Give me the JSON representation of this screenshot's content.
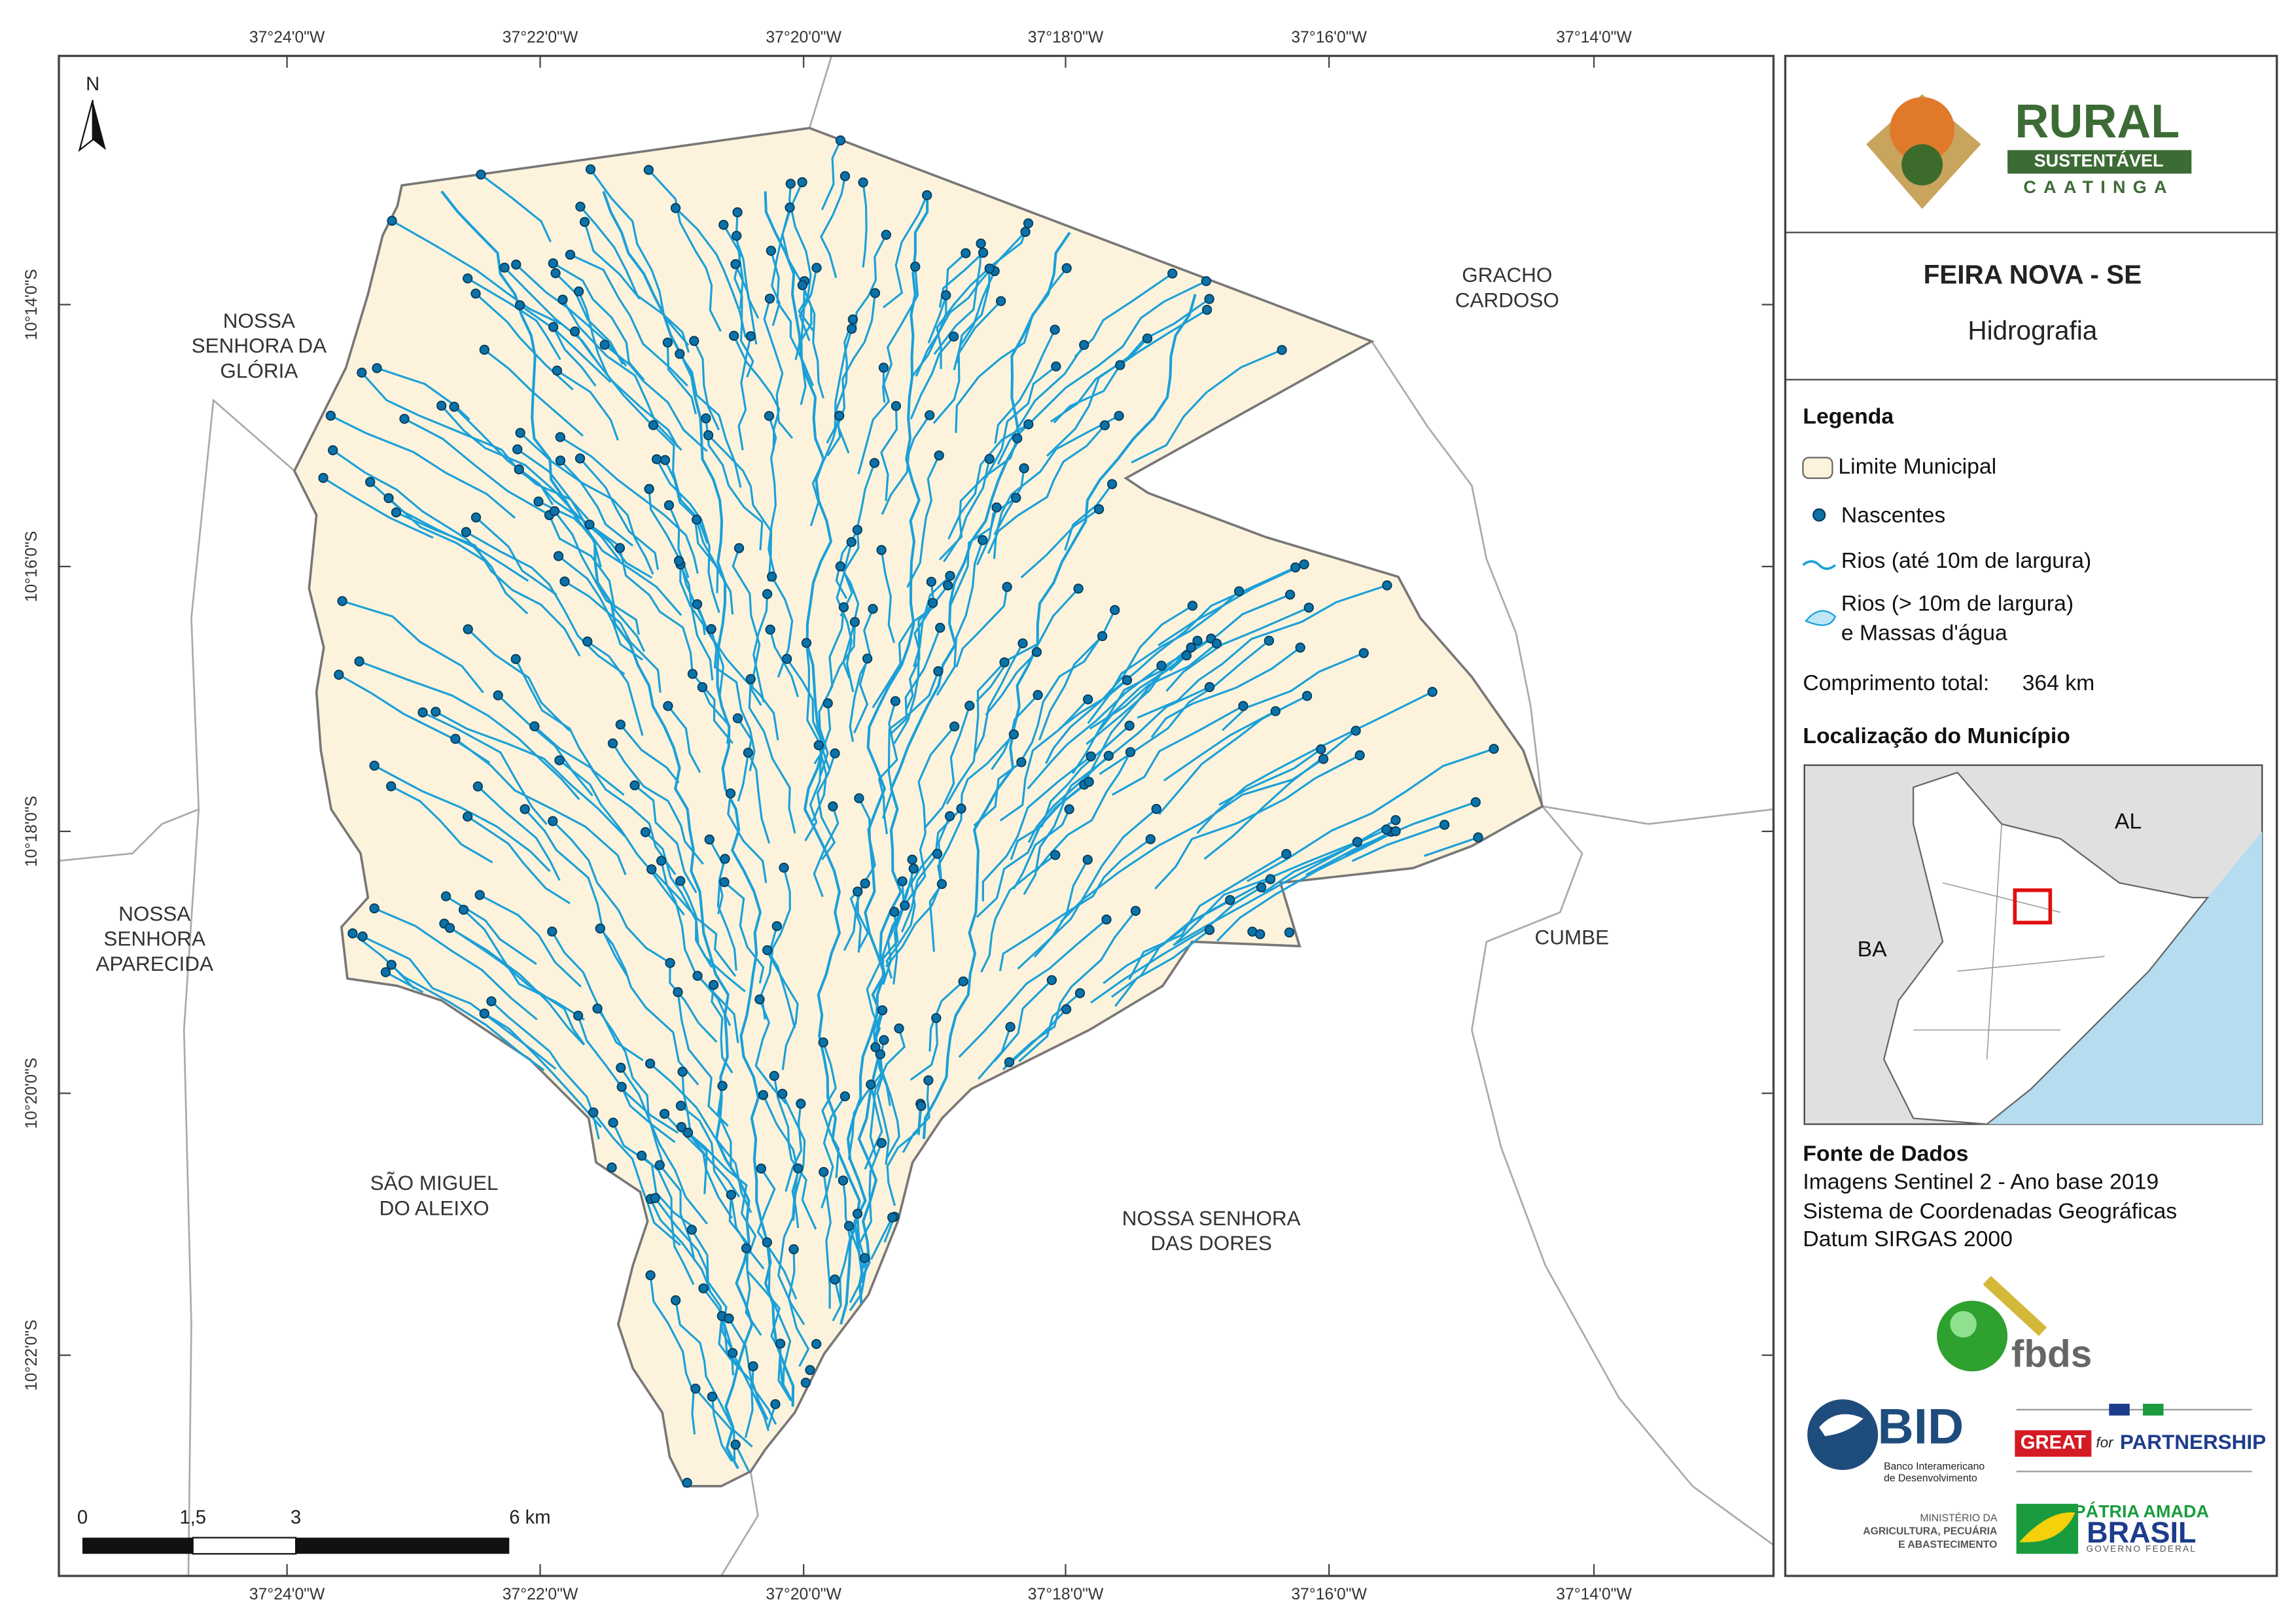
{
  "map": {
    "top_ticks": [
      "37°24'0\"W",
      "37°22'0\"W",
      "37°20'0\"W",
      "37°18'0\"W",
      "37°16'0\"W",
      "37°14'0\"W"
    ],
    "bottom_ticks": [
      "37°24'0\"W",
      "37°22'0\"W",
      "37°20'0\"W",
      "37°18'0\"W",
      "37°16'0\"W",
      "37°14'0\"W"
    ],
    "left_ticks": [
      "10°14'0\"S",
      "10°16'0\"S",
      "10°18'0\"S",
      "10°20'0\"S",
      "10°22'0\"S"
    ],
    "north": "N",
    "places": [
      {
        "lines": [
          "NOSSA",
          "SENHORA DA",
          "GLÓRIA"
        ]
      },
      {
        "lines": [
          "GRACHO",
          "CARDOSO"
        ]
      },
      {
        "lines": [
          "NOSSA",
          "SENHORA",
          "APARECIDA"
        ]
      },
      {
        "lines": [
          "CUMBE"
        ]
      },
      {
        "lines": [
          "SÃO MIGUEL",
          "DO ALEIXO"
        ]
      },
      {
        "lines": [
          "NOSSA SENHORA",
          "DAS DORES"
        ]
      }
    ],
    "scale": [
      "0",
      "1,5",
      "3",
      "6 km"
    ]
  },
  "panel": {
    "logo": {
      "title": "RURAL",
      "subtitle": "SUSTENTÁVEL",
      "region": "CAATINGA"
    },
    "title": "FEIRA NOVA - SE",
    "subtitle": "Hidrografia",
    "legend": {
      "heading": "Legenda",
      "items": [
        "Limite Municipal",
        "Nascentes",
        "Rios (até 10m de largura)"
      ],
      "water": [
        "Rios (> 10m de largura)",
        "e Massas d'água"
      ]
    },
    "total": {
      "label": "Comprimento total:",
      "value": "364 km"
    },
    "locator": {
      "heading": "Localização do Município",
      "labels": [
        "AL",
        "BA"
      ]
    },
    "sources": {
      "heading": "Fonte de Dados",
      "lines": [
        "Imagens Sentinel 2 - Ano base 2019",
        "Sistema de Coordenadas Geográficas",
        "Datum SIRGAS 2000"
      ]
    },
    "partners": {
      "fbds": "fbds",
      "bid": "BID",
      "bid_name": [
        "Banco Interamericano",
        "de Desenvolvimento"
      ],
      "great": "GREAT",
      "great_for": "for",
      "great_partner": "PARTNERSHIP",
      "ministry": [
        "MINISTÉRIO DA",
        "AGRICULTURA, PECUÁRIA",
        "E ABASTECIMENTO"
      ],
      "brasil_top": "PÁTRIA AMADA",
      "brasil": "BRASIL",
      "brasil_sub": "GOVERNO FEDERAL"
    }
  }
}
